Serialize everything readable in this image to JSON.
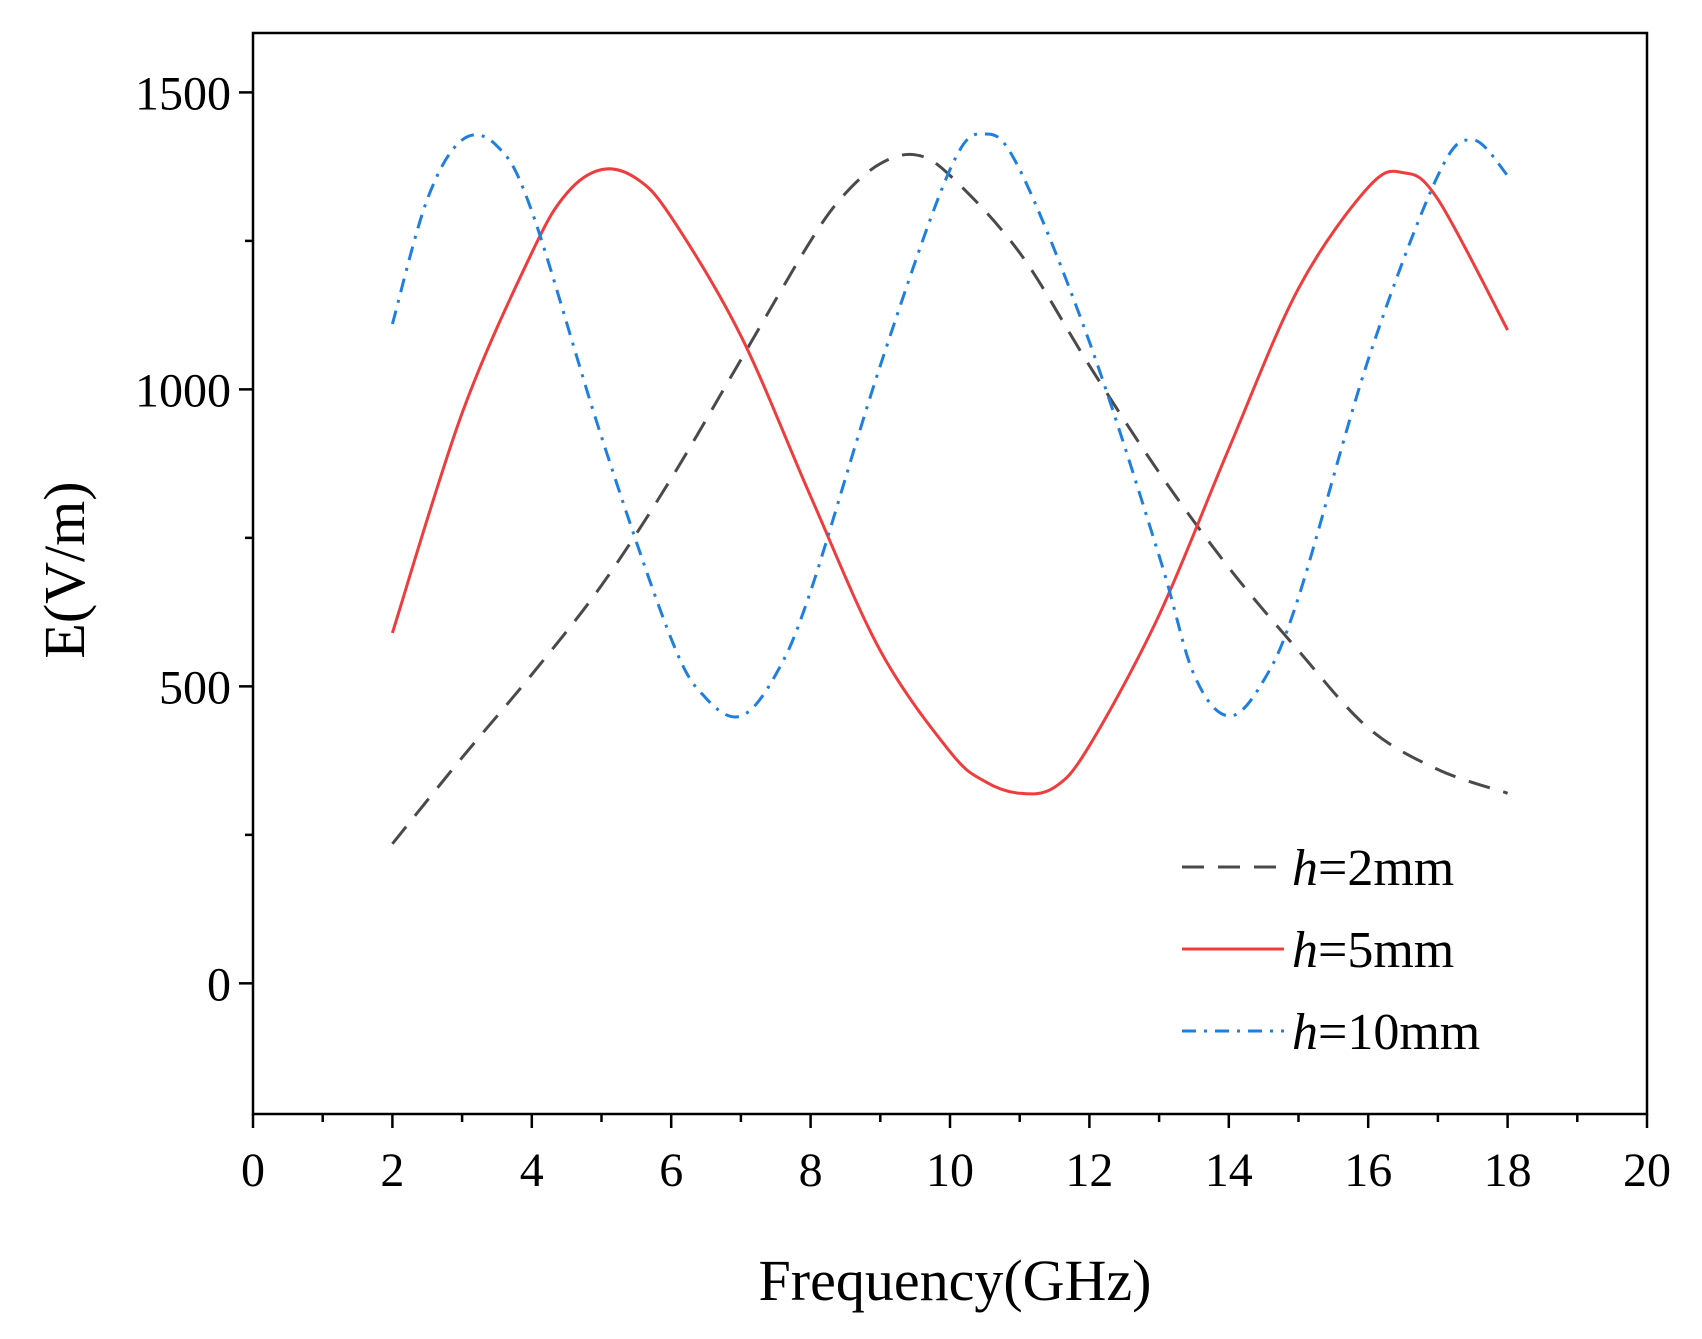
{
  "chart_data": {
    "type": "line",
    "title": "",
    "xlabel": "Frequency(GHz)",
    "ylabel": "E(V/m)",
    "xlim": [
      0,
      20
    ],
    "ylim": [
      -220,
      1600
    ],
    "xticks": [
      "0",
      "2",
      "4",
      "6",
      "8",
      "10",
      "12",
      "14",
      "16",
      "18",
      "20"
    ],
    "yticks": [
      "0",
      "500",
      "1000",
      "1500"
    ],
    "legend_position": "bottom-right",
    "series": [
      {
        "name": "h=2mm",
        "legend_var": "h",
        "legend_value": "=2mm",
        "color": "#4a4a4a",
        "style": "dashed",
        "x": [
          2,
          3,
          4,
          5,
          6,
          7,
          8,
          8.5,
          9,
          9.5,
          10,
          11,
          12,
          13,
          14,
          15,
          16,
          17,
          18
        ],
        "y": [
          235,
          380,
          520,
          670,
          850,
          1050,
          1250,
          1330,
          1380,
          1395,
          1360,
          1230,
          1040,
          860,
          700,
          560,
          430,
          360,
          320
        ]
      },
      {
        "name": "h=5mm",
        "legend_var": "h",
        "legend_value": "=5mm",
        "color": "#f03c3c",
        "style": "solid",
        "x": [
          2,
          3,
          4,
          4.5,
          5,
          5.5,
          6,
          7,
          8,
          9,
          10,
          10.5,
          11,
          11.5,
          12,
          13,
          14,
          15,
          16,
          16.5,
          17,
          18
        ],
        "y": [
          590,
          960,
          1230,
          1330,
          1370,
          1355,
          1290,
          1090,
          820,
          560,
          390,
          340,
          320,
          330,
          400,
          620,
          900,
          1170,
          1340,
          1365,
          1320,
          1100
        ]
      },
      {
        "name": "h=10mm",
        "legend_var": "h",
        "legend_value": "=10mm",
        "color": "#1f7fe0",
        "style": "dashdot",
        "x": [
          2,
          2.5,
          3,
          3.5,
          4,
          5,
          6,
          6.5,
          7,
          7.5,
          8,
          9,
          10,
          10.5,
          11,
          12,
          13,
          13.5,
          14,
          14.5,
          15,
          16,
          17,
          17.5,
          18
        ],
        "y": [
          1110,
          1320,
          1420,
          1410,
          1300,
          920,
          580,
          480,
          450,
          520,
          660,
          1040,
          1370,
          1430,
          1370,
          1080,
          720,
          520,
          450,
          510,
          650,
          1050,
          1360,
          1420,
          1360
        ]
      }
    ]
  }
}
